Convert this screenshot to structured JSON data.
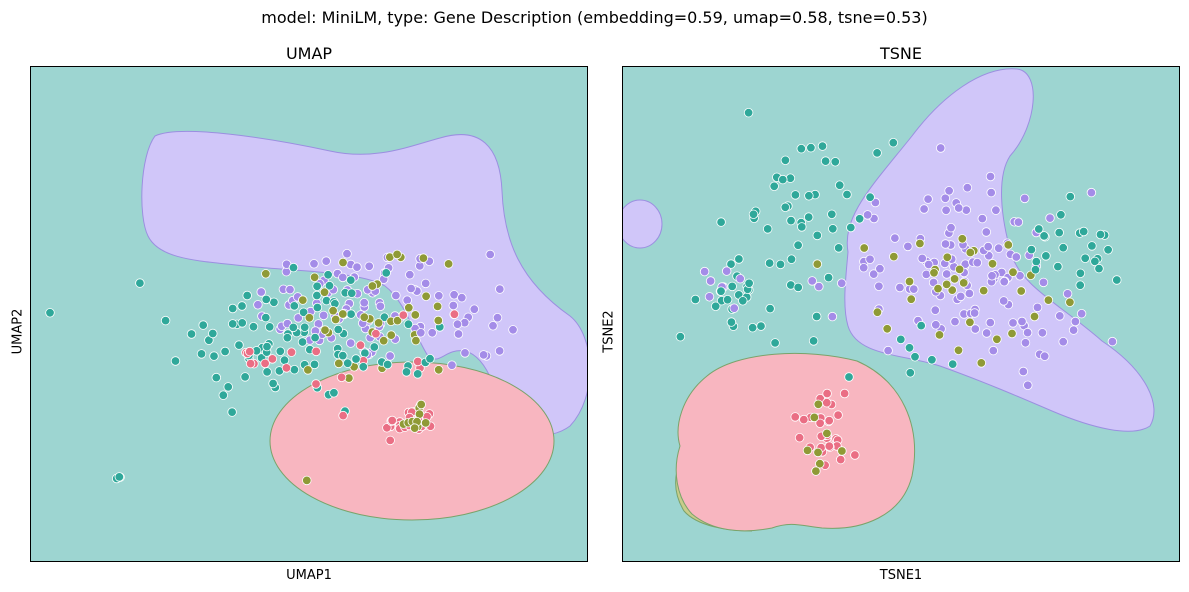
{
  "figure": {
    "title": "model: MiniLM, type: Gene Description (embedding=0.59, umap=0.58, tsne=0.53)"
  },
  "colors": {
    "background_region": "#9dd5d1",
    "purple_region": "#d0c6f9",
    "pink_region": "#f8b6c0",
    "olive_region": "#c8cc8a",
    "point_teal": "#2fa89a",
    "point_purple": "#a48ce8",
    "point_olive": "#8f9a36",
    "point_pink": "#ea6e84"
  },
  "chart_data": [
    {
      "type": "scatter",
      "title": "UMAP",
      "xlabel": "UMAP1",
      "ylabel": "UMAP2",
      "xticks": [],
      "yticks": [],
      "grid": false,
      "legend": "none",
      "regions": [
        "teal background",
        "purple upper region",
        "pink lower ellipse"
      ],
      "clusters": [
        {
          "color": "purple",
          "cx": 58,
          "cy": 52,
          "sx": 9,
          "sy": 6,
          "n": 85
        },
        {
          "color": "teal",
          "cx": 48,
          "cy": 46,
          "sx": 11,
          "sy": 9,
          "n": 70
        },
        {
          "color": "olive",
          "cx": 62,
          "cy": 50,
          "sx": 8,
          "sy": 8,
          "n": 40
        },
        {
          "color": "pink",
          "cx": 68,
          "cy": 28,
          "sx": 2.2,
          "sy": 1.5,
          "n": 28
        },
        {
          "color": "olive",
          "cx": 69,
          "cy": 28.5,
          "sx": 1.8,
          "sy": 1.4,
          "n": 10
        },
        {
          "color": "teal",
          "cx": 36,
          "cy": 43,
          "sx": 4,
          "sy": 3,
          "n": 14
        },
        {
          "color": "purple",
          "cx": 77,
          "cy": 48,
          "sx": 4,
          "sy": 6,
          "n": 22
        },
        {
          "color": "pink",
          "cx": 62,
          "cy": 42,
          "sx": 9,
          "sy": 8,
          "n": 14
        },
        {
          "color": "teal",
          "cx": 67,
          "cy": 40,
          "sx": 4,
          "sy": 2,
          "n": 10
        },
        {
          "color": "teal",
          "cx": 16,
          "cy": 17,
          "sx": 0.4,
          "sy": 0.3,
          "n": 3
        },
        {
          "color": "pink",
          "cx": 39,
          "cy": 40,
          "sx": 1.5,
          "sy": 1.2,
          "n": 6
        }
      ]
    },
    {
      "type": "scatter",
      "title": "TSNE",
      "xlabel": "TSNE1",
      "ylabel": "TSNE2",
      "xticks": [],
      "yticks": [],
      "grid": false,
      "legend": "none",
      "regions": [
        "teal background",
        "purple diagonal region",
        "pink lower-left blob",
        "olive sliver",
        "small purple circle at left edge"
      ],
      "clusters": [
        {
          "color": "purple",
          "cx": 60,
          "cy": 59,
          "sx": 11,
          "sy": 8,
          "n": 110
        },
        {
          "color": "olive",
          "cx": 60,
          "cy": 57,
          "sx": 11,
          "sy": 7,
          "n": 35
        },
        {
          "color": "teal",
          "cx": 33,
          "cy": 72,
          "sx": 8,
          "sy": 6,
          "n": 40
        },
        {
          "color": "teal",
          "cx": 81,
          "cy": 62,
          "sx": 5,
          "sy": 5,
          "n": 25
        },
        {
          "color": "teal",
          "cx": 20,
          "cy": 55,
          "sx": 3,
          "sy": 3,
          "n": 18
        },
        {
          "color": "purple",
          "cx": 19,
          "cy": 55,
          "sx": 2,
          "sy": 2,
          "n": 8
        },
        {
          "color": "pink",
          "cx": 36,
          "cy": 26,
          "sx": 3,
          "sy": 4,
          "n": 30
        },
        {
          "color": "olive",
          "cx": 34,
          "cy": 24,
          "sx": 3,
          "sy": 4,
          "n": 8
        },
        {
          "color": "teal",
          "cx": 26,
          "cy": 50,
          "sx": 6,
          "sy": 5,
          "n": 12
        },
        {
          "color": "teal",
          "cx": 52,
          "cy": 42,
          "sx": 5,
          "sy": 3,
          "n": 8
        },
        {
          "color": "purple",
          "cx": 75,
          "cy": 44,
          "sx": 5,
          "sy": 4,
          "n": 12
        }
      ]
    }
  ]
}
